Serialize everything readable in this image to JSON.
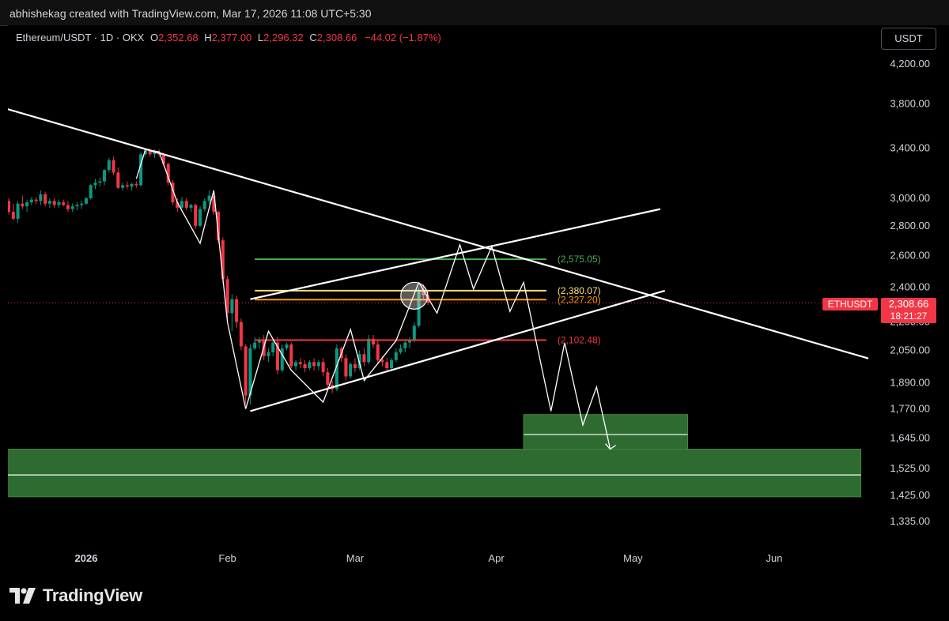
{
  "credit": "abhishekag created with TradingView.com, Mar 17, 2026 11:08 UTC+5:30",
  "legend": {
    "symbol": "Ethereum/USDT · 1D · OKX",
    "open_label": "O",
    "open": "2,352.68",
    "high_label": "H",
    "high": "2,377.00",
    "low_label": "L",
    "low": "2,296.32",
    "close_label": "C",
    "close": "2,308.66",
    "change": "−44.02 (−1.87%)"
  },
  "currency_button": "USDT",
  "price_tag": {
    "symbol": "ETHUSDT",
    "price": "2,308.66",
    "countdown": "18:21:27"
  },
  "brand": "TradingView",
  "colors": {
    "up": "#089981",
    "down": "#f23645",
    "zone": "#2e6b30",
    "green_line": "#4caf50",
    "yellow_line": "#ffe082",
    "orange_line": "#ff9800",
    "red_line": "#f23645"
  },
  "chart_data": {
    "type": "candlestick",
    "symbol": "ETHUSDT",
    "interval": "1D",
    "scale": "log",
    "ylim": [
      1300,
      4400
    ],
    "y_ticks": [
      "4,200.00",
      "3,800.00",
      "3,400.00",
      "3,000.00",
      "2,800.00",
      "2,600.00",
      "2,400.00",
      "2,200.00",
      "2,050.00",
      "1,890.00",
      "1,770.00",
      "1,645.00",
      "1,525.00",
      "1,425.00",
      "1,335.00"
    ],
    "y_tick_values": [
      4200,
      3800,
      3400,
      3000,
      2800,
      2600,
      2400,
      2200,
      2050,
      1890,
      1770,
      1645,
      1525,
      1425,
      1335
    ],
    "x_labels": [
      {
        "label": "2026",
        "date": "2026-01-01"
      },
      {
        "label": "Feb",
        "date": "2026-02-01"
      },
      {
        "label": "Mar",
        "date": "2026-03-01"
      },
      {
        "label": "Apr",
        "date": "2026-04-01"
      },
      {
        "label": "May",
        "date": "2026-05-01"
      },
      {
        "label": "Jun",
        "date": "2026-06-01"
      }
    ],
    "xlim": [
      "2025-12-14",
      "2026-06-30"
    ],
    "candles": [
      [
        "2025-12-14",
        3100,
        3180,
        2950,
        2980
      ],
      [
        "2025-12-15",
        2980,
        3000,
        2880,
        2900
      ],
      [
        "2025-12-16",
        2900,
        2960,
        2840,
        2850
      ],
      [
        "2025-12-17",
        2850,
        2980,
        2820,
        2960
      ],
      [
        "2025-12-18",
        2960,
        3020,
        2920,
        2940
      ],
      [
        "2025-12-19",
        2940,
        2990,
        2900,
        2970
      ],
      [
        "2025-12-20",
        2970,
        3010,
        2950,
        2990
      ],
      [
        "2025-12-21",
        2990,
        3010,
        2960,
        2980
      ],
      [
        "2025-12-22",
        2980,
        3060,
        2950,
        3030
      ],
      [
        "2025-12-23",
        3030,
        3050,
        2940,
        2960
      ],
      [
        "2025-12-24",
        2960,
        3000,
        2930,
        2980
      ],
      [
        "2025-12-25",
        2980,
        3000,
        2930,
        2950
      ],
      [
        "2025-12-26",
        2950,
        2990,
        2930,
        2970
      ],
      [
        "2025-12-27",
        2970,
        2990,
        2940,
        2950
      ],
      [
        "2025-12-28",
        2950,
        2980,
        2900,
        2920
      ],
      [
        "2025-12-29",
        2920,
        2960,
        2900,
        2940
      ],
      [
        "2025-12-30",
        2940,
        2970,
        2910,
        2950
      ],
      [
        "2025-12-31",
        2950,
        2980,
        2920,
        2960
      ],
      [
        "2026-01-01",
        2960,
        3010,
        2950,
        3000
      ],
      [
        "2026-01-02",
        3000,
        3110,
        2990,
        3100
      ],
      [
        "2026-01-03",
        3100,
        3150,
        3070,
        3120
      ],
      [
        "2026-01-04",
        3120,
        3160,
        3090,
        3130
      ],
      [
        "2026-01-05",
        3130,
        3230,
        3100,
        3220
      ],
      [
        "2026-01-06",
        3220,
        3320,
        3200,
        3300
      ],
      [
        "2026-01-07",
        3300,
        3330,
        3180,
        3200
      ],
      [
        "2026-01-08",
        3200,
        3240,
        3070,
        3080
      ],
      [
        "2026-01-09",
        3080,
        3120,
        3060,
        3100
      ],
      [
        "2026-01-10",
        3100,
        3130,
        3070,
        3090
      ],
      [
        "2026-01-11",
        3090,
        3120,
        3060,
        3110
      ],
      [
        "2026-01-12",
        3110,
        3130,
        3080,
        3100
      ],
      [
        "2026-01-13",
        3100,
        3370,
        3090,
        3350
      ],
      [
        "2026-01-14",
        3350,
        3400,
        3330,
        3380
      ],
      [
        "2026-01-15",
        3380,
        3400,
        3330,
        3350
      ],
      [
        "2026-01-16",
        3350,
        3390,
        3320,
        3370
      ],
      [
        "2026-01-17",
        3370,
        3390,
        3330,
        3350
      ],
      [
        "2026-01-18",
        3350,
        3360,
        3250,
        3270
      ],
      [
        "2026-01-19",
        3270,
        3280,
        3100,
        3120
      ],
      [
        "2026-01-20",
        3120,
        3140,
        2950,
        2970
      ],
      [
        "2026-01-21",
        2970,
        3000,
        2900,
        2930
      ],
      [
        "2026-01-22",
        2930,
        3010,
        2920,
        2980
      ],
      [
        "2026-01-23",
        2980,
        3000,
        2910,
        2930
      ],
      [
        "2026-01-24",
        2930,
        2960,
        2900,
        2950
      ],
      [
        "2026-01-25",
        2950,
        2960,
        2780,
        2800
      ],
      [
        "2026-01-26",
        2800,
        2940,
        2790,
        2920
      ],
      [
        "2026-01-27",
        2920,
        3000,
        2900,
        2980
      ],
      [
        "2026-01-28",
        2980,
        3060,
        2960,
        3020
      ],
      [
        "2026-01-29",
        3020,
        3030,
        2880,
        2900
      ],
      [
        "2026-01-30",
        2900,
        2910,
        2680,
        2700
      ],
      [
        "2026-01-31",
        2700,
        2720,
        2420,
        2450
      ],
      [
        "2026-02-01",
        2450,
        2470,
        2200,
        2250
      ],
      [
        "2026-02-02",
        2250,
        2360,
        2150,
        2330
      ],
      [
        "2026-02-03",
        2330,
        2350,
        2170,
        2200
      ],
      [
        "2026-02-04",
        2200,
        2220,
        2050,
        2070
      ],
      [
        "2026-02-05",
        2070,
        2080,
        1790,
        1830
      ],
      [
        "2026-02-06",
        1830,
        2080,
        1790,
        2060
      ],
      [
        "2026-02-07",
        2060,
        2120,
        2050,
        2090
      ],
      [
        "2026-02-08",
        2090,
        2120,
        2060,
        2100
      ],
      [
        "2026-02-09",
        2100,
        2130,
        2000,
        2020
      ],
      [
        "2026-02-10",
        2020,
        2060,
        1990,
        2040
      ],
      [
        "2026-02-11",
        2040,
        2110,
        2020,
        2090
      ],
      [
        "2026-02-12",
        2090,
        2120,
        1930,
        1950
      ],
      [
        "2026-02-13",
        1950,
        2080,
        1940,
        2060
      ],
      [
        "2026-02-14",
        2060,
        2090,
        2050,
        2080
      ],
      [
        "2026-02-15",
        2080,
        2090,
        1960,
        1970
      ],
      [
        "2026-02-16",
        1970,
        2000,
        1950,
        1990
      ],
      [
        "2026-02-17",
        1990,
        2010,
        1960,
        1980
      ],
      [
        "2026-02-18",
        1980,
        2000,
        1940,
        1960
      ],
      [
        "2026-02-19",
        1960,
        2000,
        1950,
        1990
      ],
      [
        "2026-02-20",
        1990,
        2010,
        1950,
        1970
      ],
      [
        "2026-02-21",
        1970,
        2000,
        1950,
        1990
      ],
      [
        "2026-02-22",
        1990,
        2010,
        1920,
        1940
      ],
      [
        "2026-02-23",
        1940,
        1960,
        1860,
        1880
      ],
      [
        "2026-02-24",
        1880,
        1900,
        1840,
        1860
      ],
      [
        "2026-02-25",
        1860,
        2080,
        1850,
        2060
      ],
      [
        "2026-02-26",
        2060,
        2070,
        1990,
        2010
      ],
      [
        "2026-02-27",
        2010,
        2030,
        1900,
        1920
      ],
      [
        "2026-02-28",
        1920,
        1990,
        1910,
        1980
      ],
      [
        "2026-03-01",
        1980,
        2010,
        1940,
        1960
      ],
      [
        "2026-03-02",
        1960,
        2050,
        1950,
        2030
      ],
      [
        "2026-03-03",
        2030,
        2060,
        1970,
        1990
      ],
      [
        "2026-03-04",
        1990,
        2130,
        1980,
        2110
      ],
      [
        "2026-03-05",
        2110,
        2130,
        2060,
        2080
      ],
      [
        "2026-03-06",
        2080,
        2100,
        1980,
        2000
      ],
      [
        "2026-03-07",
        2000,
        2020,
        1970,
        1990
      ],
      [
        "2026-03-08",
        1990,
        2010,
        1940,
        1960
      ],
      [
        "2026-03-09",
        1960,
        2010,
        1950,
        2000
      ],
      [
        "2026-03-10",
        2000,
        2060,
        1990,
        2040
      ],
      [
        "2026-03-11",
        2040,
        2080,
        2030,
        2060
      ],
      [
        "2026-03-12",
        2060,
        2110,
        2040,
        2090
      ],
      [
        "2026-03-13",
        2090,
        2120,
        2060,
        2100
      ],
      [
        "2026-03-14",
        2100,
        2200,
        2090,
        2180
      ],
      [
        "2026-03-15",
        2180,
        2400,
        2170,
        2380
      ],
      [
        "2026-03-16",
        2380,
        2420,
        2330,
        2352.68
      ],
      [
        "2026-03-17",
        2352.68,
        2377,
        2296.32,
        2308.66
      ]
    ],
    "trendlines": [
      {
        "name": "descending",
        "points": [
          [
            "2025-12-14",
            3760
          ],
          [
            "2026-06-26",
            1980
          ]
        ]
      },
      {
        "name": "channel-upper",
        "points": [
          [
            "2026-02-06",
            2330
          ],
          [
            "2026-05-07",
            2920
          ]
        ]
      },
      {
        "name": "channel-lower",
        "points": [
          [
            "2026-02-06",
            1760
          ],
          [
            "2026-05-08",
            2380
          ]
        ]
      }
    ],
    "levels": [
      {
        "name": "green",
        "value": 2575.05,
        "label": "(2,575.05)",
        "from": "2026-02-07",
        "to": "2026-04-12"
      },
      {
        "name": "yellow",
        "value": 2380.07,
        "label": "(2,380.07)",
        "from": "2026-02-07",
        "to": "2026-04-12"
      },
      {
        "name": "orange",
        "value": 2327.2,
        "label": "(2,327.20)",
        "from": "2026-02-07",
        "to": "2026-04-12"
      },
      {
        "name": "red",
        "value": 2102.48,
        "label": "(2,102.48)",
        "from": "2026-02-07",
        "to": "2026-04-12"
      }
    ],
    "zones": [
      {
        "name": "zone-upper",
        "from": "2026-04-07",
        "to": "2026-05-13",
        "top": 1745,
        "bottom": 1600,
        "mid": 1660
      },
      {
        "name": "zone-lower",
        "from": "2025-12-14",
        "to": "2026-06-20",
        "top": 1600,
        "bottom": 1420,
        "mid": 1500
      }
    ],
    "zigzag_history": [
      [
        "2026-01-12",
        3150
      ],
      [
        "2026-01-14",
        3390
      ],
      [
        "2026-01-17",
        3370
      ],
      [
        "2026-01-21",
        2970
      ],
      [
        "2026-01-26",
        2680
      ],
      [
        "2026-01-29",
        3060
      ],
      [
        "2026-02-01",
        2200
      ],
      [
        "2026-02-05",
        1770
      ],
      [
        "2026-02-10",
        2150
      ],
      [
        "2026-02-15",
        1950
      ],
      [
        "2026-02-22",
        1800
      ],
      [
        "2026-02-28",
        2160
      ],
      [
        "2026-03-03",
        1900
      ],
      [
        "2026-03-10",
        2100
      ],
      [
        "2026-03-15",
        2430
      ]
    ],
    "zigzag_projection": [
      [
        "2026-03-15",
        2430
      ],
      [
        "2026-03-19",
        2250
      ],
      [
        "2026-03-24",
        2670
      ],
      [
        "2026-03-27",
        2390
      ],
      [
        "2026-03-31",
        2660
      ],
      [
        "2026-04-04",
        2260
      ],
      [
        "2026-04-07",
        2430
      ],
      [
        "2026-04-13",
        1760
      ],
      [
        "2026-04-16",
        2090
      ],
      [
        "2026-04-20",
        1700
      ],
      [
        "2026-04-23",
        1870
      ],
      [
        "2026-04-26",
        1600
      ]
    ],
    "highlight_circle": {
      "date": "2026-03-14",
      "value": 2350
    }
  }
}
